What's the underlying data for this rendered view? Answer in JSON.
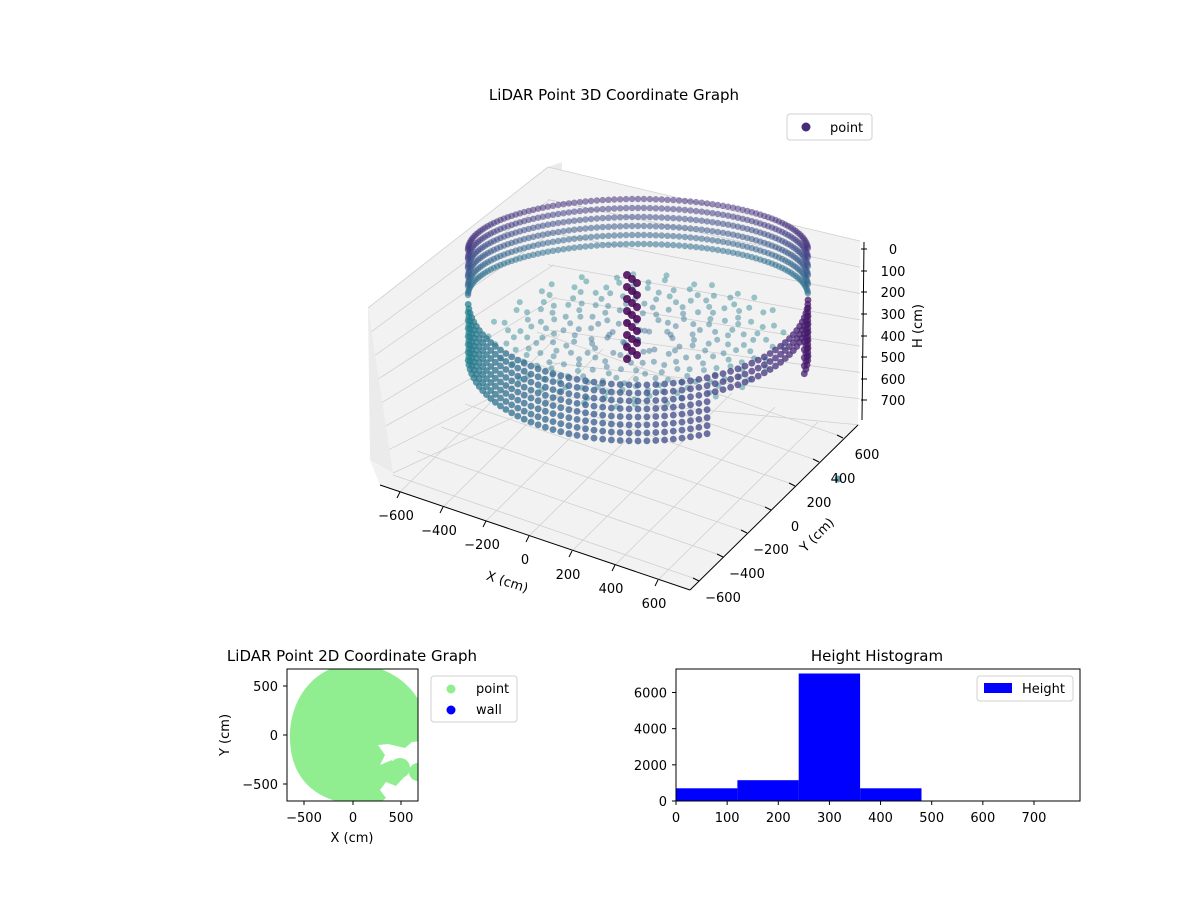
{
  "colors": {
    "viridis_dark": "#3b2a6d",
    "viridis_teal": "#3d7f94",
    "viridis_blue": "#4a6a95",
    "point_2d": "#90ee90",
    "wall_2d": "#0000ff",
    "hist_bar": "#0000ff",
    "pane": "#f2f2f2",
    "grid": "#cccccc"
  },
  "chart_data": [
    {
      "type": "scatter",
      "projection": "3d",
      "title": "LiDAR Point 3D Coordinate Graph",
      "xlabel": "X (cm)",
      "ylabel": "Y (cm)",
      "zlabel": "H (cm)",
      "x_ticks": [
        "−600",
        "−400",
        "−200",
        "0",
        "200",
        "400",
        "600"
      ],
      "y_ticks": [
        "−600",
        "−400",
        "−200",
        "0",
        "200",
        "400",
        "600"
      ],
      "z_ticks": [
        "0",
        "100",
        "200",
        "300",
        "400",
        "500",
        "600",
        "700"
      ],
      "xlim": [
        -650,
        650
      ],
      "ylim": [
        -650,
        650
      ],
      "zlim": [
        0,
        750
      ],
      "z_inverted": true,
      "legend": {
        "entries": [
          "point"
        ],
        "placement": "top-right"
      },
      "colormap": "viridis",
      "grid": true,
      "description_of_points": "Cylindrical wall of points at radius ~600 cm from 0 to ~700 cm height, denser floor region at ~300 cm height, and a column of points near center"
    },
    {
      "type": "scatter",
      "title": "LiDAR Point 2D Coordinate Graph",
      "xlabel": "X (cm)",
      "ylabel": "Y (cm)",
      "x_ticks": [
        "−500",
        "0",
        "500"
      ],
      "y_ticks": [
        "500",
        "0",
        "−500"
      ],
      "xlim": [
        -650,
        650
      ],
      "ylim": [
        -650,
        650
      ],
      "legend": {
        "entries": [
          "point",
          "wall"
        ],
        "placement": "outside-right"
      },
      "series": [
        {
          "name": "point",
          "shape": "disk of radius ~620 cm centered near (100, 0) with a notch in the lower-right"
        },
        {
          "name": "wall"
        }
      ]
    },
    {
      "type": "bar",
      "subtype": "histogram",
      "title": "Height Histogram",
      "xlabel": "",
      "ylabel": "",
      "x_ticks": [
        "0",
        "100",
        "200",
        "300",
        "400",
        "500",
        "600",
        "700"
      ],
      "y_ticks": [
        "0",
        "2000",
        "4000",
        "6000"
      ],
      "xlim": [
        0,
        790
      ],
      "ylim": [
        0,
        7300
      ],
      "bins": [
        {
          "from": 0,
          "to": 120,
          "count": 700
        },
        {
          "from": 120,
          "to": 240,
          "count": 1150
        },
        {
          "from": 240,
          "to": 360,
          "count": 7050
        },
        {
          "from": 360,
          "to": 480,
          "count": 700
        },
        {
          "from": 480,
          "to": 600,
          "count": 20
        },
        {
          "from": 600,
          "to": 720,
          "count": 10
        }
      ],
      "legend": {
        "entries": [
          "Height"
        ],
        "placement": "top-right"
      }
    }
  ]
}
